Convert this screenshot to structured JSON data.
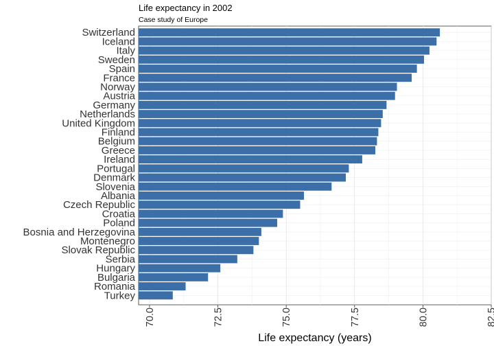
{
  "chart_data": {
    "type": "bar",
    "orientation": "horizontal",
    "title": "Life expectancy in 2002",
    "subtitle": "Case study of Europe",
    "xlabel": "Life expectancy (years)",
    "ylabel": "",
    "xlim": [
      69.6,
      82.5
    ],
    "x_ticks": [
      "70.0",
      "72.5",
      "75.0",
      "77.5",
      "80.0",
      "82.5"
    ],
    "grid": true,
    "bar_color": "#3c6ea8",
    "categories": [
      "Switzerland",
      "Iceland",
      "Italy",
      "Sweden",
      "Spain",
      "France",
      "Norway",
      "Austria",
      "Germany",
      "Netherlands",
      "United Kingdom",
      "Finland",
      "Belgium",
      "Greece",
      "Ireland",
      "Portugal",
      "Denmark",
      "Slovenia",
      "Albania",
      "Czech Republic",
      "Croatia",
      "Poland",
      "Bosnia and Herzegovina",
      "Montenegro",
      "Slovak Republic",
      "Serbia",
      "Hungary",
      "Bulgaria",
      "Romania",
      "Turkey"
    ],
    "values": [
      80.62,
      80.5,
      80.24,
      80.04,
      79.78,
      79.59,
      79.05,
      78.98,
      78.67,
      78.53,
      78.47,
      78.37,
      78.32,
      78.26,
      77.78,
      77.29,
      77.18,
      76.66,
      75.65,
      75.51,
      74.88,
      74.67,
      74.09,
      74.0,
      73.8,
      73.21,
      72.59,
      72.14,
      71.32,
      70.85
    ]
  }
}
